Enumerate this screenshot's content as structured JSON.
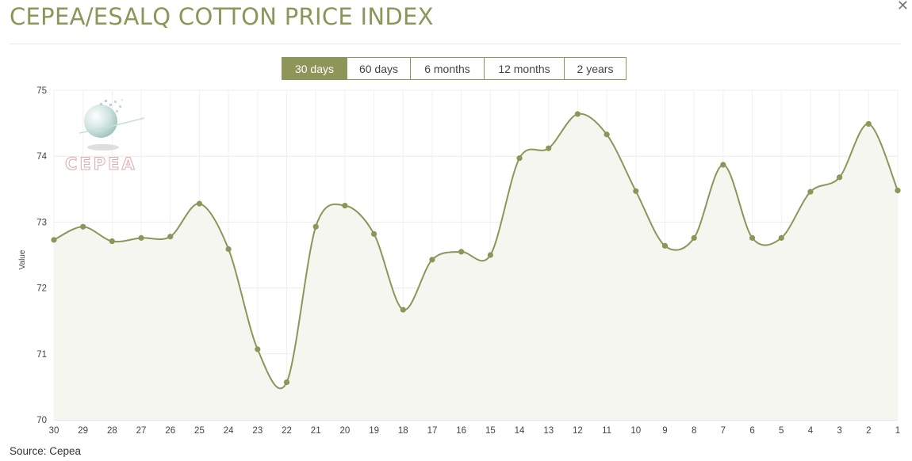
{
  "title": "CEPEA/ESALQ COTTON PRICE INDEX",
  "close_icon": "close-icon",
  "tabs": [
    {
      "label": "30 days",
      "active": true
    },
    {
      "label": "60 days",
      "active": false
    },
    {
      "label": "6 months",
      "active": false
    },
    {
      "label": "12 months",
      "active": false
    },
    {
      "label": "2 years",
      "active": false
    }
  ],
  "logo": {
    "text": "CEPEA"
  },
  "source": "Source: Cepea",
  "colors": {
    "accent": "#8d9559",
    "line": "#8d9559",
    "fill": "#f6f6f0"
  },
  "chart_data": {
    "type": "area",
    "title": "",
    "xlabel": "",
    "ylabel": "Value",
    "ylim": [
      70,
      75
    ],
    "yticks": [
      70,
      71,
      72,
      73,
      74,
      75
    ],
    "grid": true,
    "x": [
      "30",
      "29",
      "28",
      "27",
      "26",
      "25",
      "24",
      "23",
      "22",
      "21",
      "20",
      "19",
      "18",
      "17",
      "16",
      "15",
      "14",
      "13",
      "12",
      "11",
      "10",
      "9",
      "8",
      "7",
      "6",
      "5",
      "4",
      "3",
      "2",
      "1"
    ],
    "series": [
      {
        "values": [
          72.73,
          72.93,
          72.71,
          72.76,
          72.78,
          73.28,
          72.59,
          71.07,
          70.57,
          72.93,
          73.25,
          72.82,
          71.67,
          72.43,
          72.55,
          72.5,
          73.97,
          74.12,
          74.64,
          74.33,
          73.47,
          72.64,
          72.76,
          73.87,
          72.76,
          72.76,
          73.46,
          73.68,
          74.49,
          73.48
        ]
      }
    ]
  }
}
